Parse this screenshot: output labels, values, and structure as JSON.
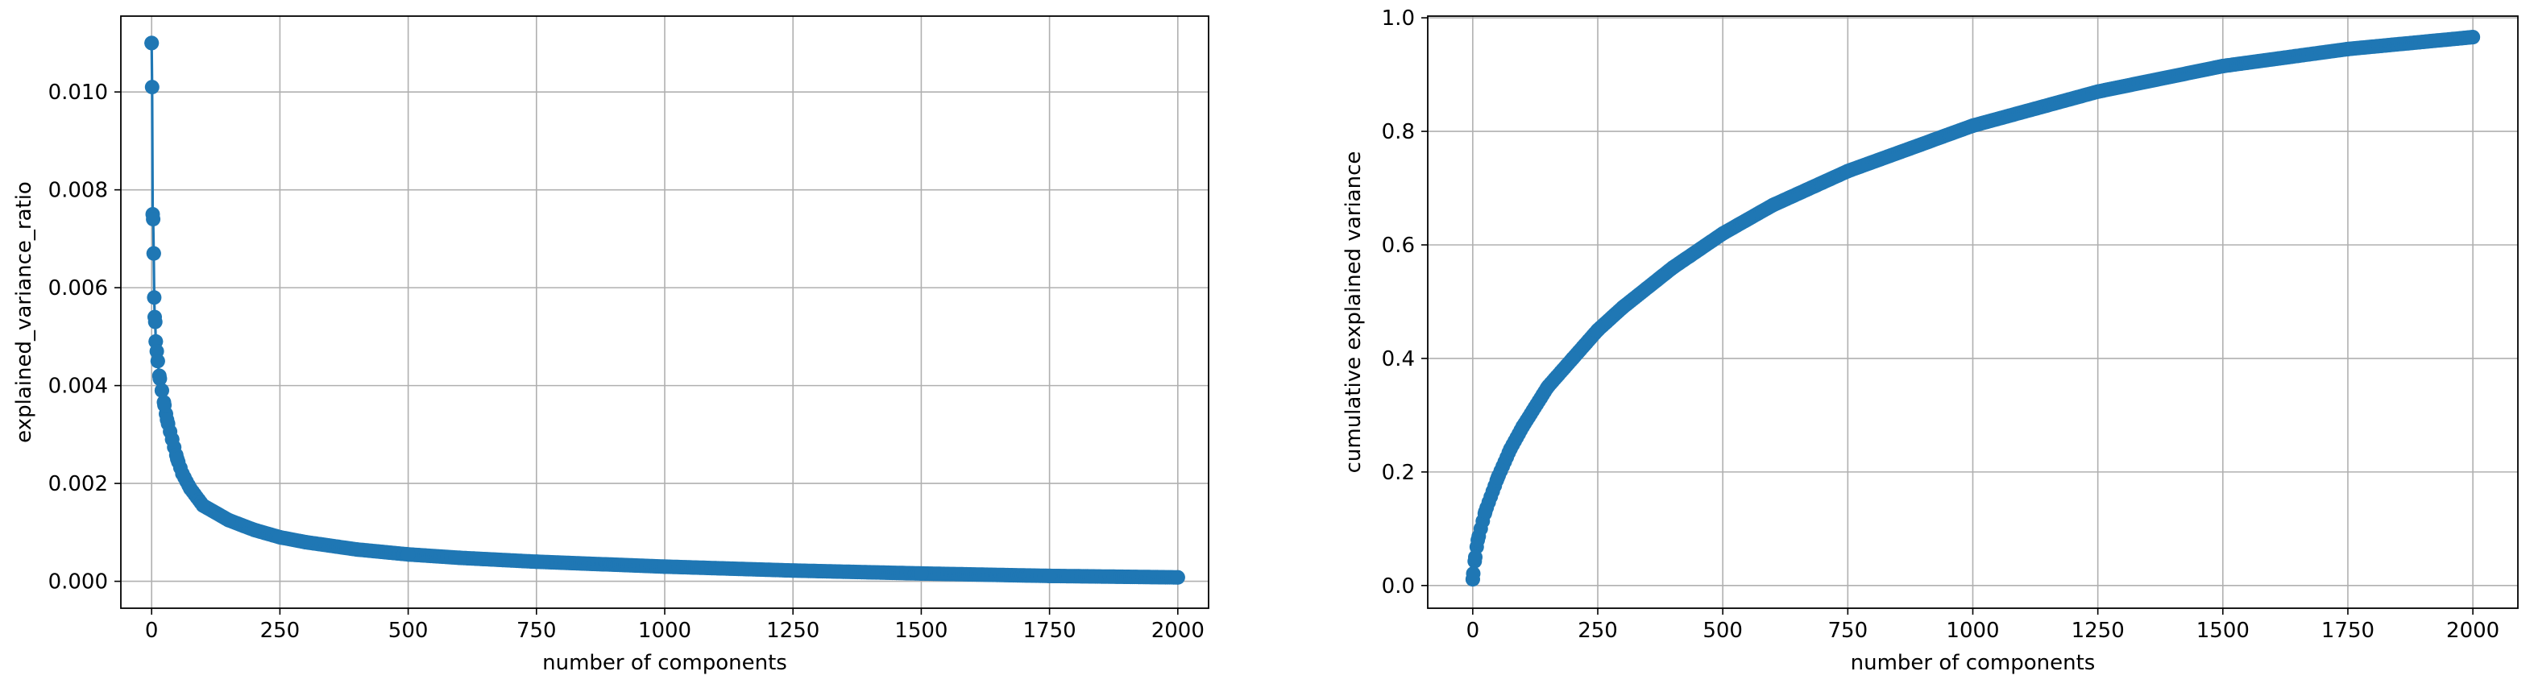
{
  "colors": {
    "series": "#1f77b4",
    "grid": "#b0b0b0",
    "axes": "#000000"
  },
  "chart_data": [
    {
      "type": "line",
      "title": "",
      "xlabel": "number of components",
      "ylabel": "explained_variance_ratio",
      "xlim": [
        -60,
        2060
      ],
      "ylim": [
        -0.00055,
        0.01155
      ],
      "xticks": [
        0,
        250,
        500,
        750,
        1000,
        1250,
        1500,
        1750,
        2000
      ],
      "yticks": [
        0.0,
        0.002,
        0.004,
        0.006,
        0.008,
        0.01
      ],
      "ytick_labels": [
        "0.000",
        "0.002",
        "0.004",
        "0.006",
        "0.008",
        "0.010"
      ],
      "grid": true,
      "marker": "circle",
      "series": [
        {
          "x": [
            0,
            1,
            2,
            3,
            4,
            5,
            6,
            7,
            8,
            10,
            12,
            15,
            20,
            25,
            30,
            40,
            50,
            60,
            75,
            100,
            150,
            200,
            250,
            300,
            400,
            500,
            600,
            750,
            1000,
            1250,
            1500,
            1750,
            2000
          ],
          "values": [
            0.011,
            0.0101,
            0.0075,
            0.0074,
            0.0067,
            0.0058,
            0.0054,
            0.0053,
            0.0049,
            0.0047,
            0.0045,
            0.0042,
            0.0039,
            0.0036,
            0.0033,
            0.0029,
            0.0025,
            0.0022,
            0.0019,
            0.00155,
            0.00125,
            0.00105,
            0.0009,
            0.0008,
            0.00065,
            0.00055,
            0.00048,
            0.0004,
            0.0003,
            0.00022,
            0.00016,
            0.00011,
            8e-05
          ]
        }
      ]
    },
    {
      "type": "line",
      "title": "",
      "xlabel": "number of components",
      "ylabel": "cumulative explained variance",
      "xlim": [
        -90,
        2090
      ],
      "ylim": [
        -0.04,
        1.003
      ],
      "xticks": [
        0,
        250,
        500,
        750,
        1000,
        1250,
        1500,
        1750,
        2000
      ],
      "yticks": [
        0.0,
        0.2,
        0.4,
        0.6,
        0.8,
        1.0
      ],
      "ytick_labels": [
        "0.0",
        "0.2",
        "0.4",
        "0.6",
        "0.8",
        "1.0"
      ],
      "grid": true,
      "marker": "circle",
      "series": [
        {
          "x": [
            0,
            1,
            5,
            10,
            25,
            50,
            75,
            100,
            150,
            200,
            250,
            300,
            400,
            500,
            600,
            750,
            1000,
            1250,
            1500,
            1750,
            2000
          ],
          "values": [
            0.011,
            0.021,
            0.05,
            0.08,
            0.13,
            0.19,
            0.24,
            0.28,
            0.35,
            0.4,
            0.45,
            0.49,
            0.56,
            0.62,
            0.67,
            0.73,
            0.81,
            0.87,
            0.915,
            0.945,
            0.966
          ]
        }
      ]
    }
  ]
}
